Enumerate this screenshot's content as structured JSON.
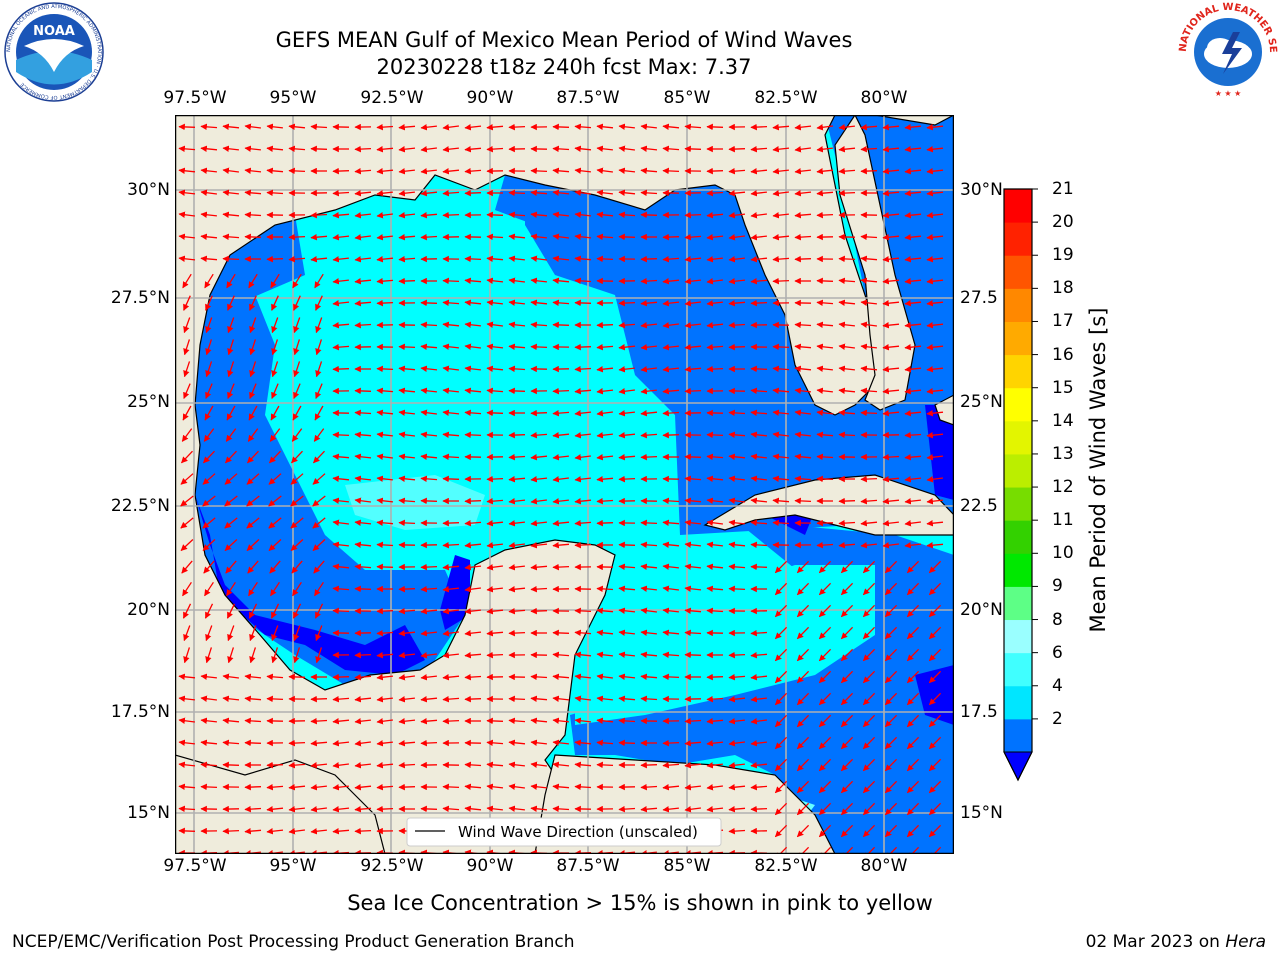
{
  "title": {
    "line1": "GEFS MEAN Gulf of Mexico Mean Period of Wind Waves",
    "line2": "20230228 t18z 240h fcst   Max: 7.37"
  },
  "map": {
    "lon_ticks": [
      "97.5°W",
      "95°W",
      "92.5°W",
      "90°W",
      "87.5°W",
      "85°W",
      "82.5°W",
      "80°W"
    ],
    "lat_ticks_left": [
      "30°N",
      "27.5°N",
      "25°N",
      "22.5°N",
      "20°N",
      "17.5°N",
      "15°N"
    ],
    "lat_ticks_right": [
      "30°N",
      "27.5",
      "25°N",
      "22.5",
      "20°N",
      "17.5",
      "15°N"
    ],
    "legend_label": "Wind Wave Direction (unscaled)",
    "colors": {
      "land": "#efecdc",
      "ocean_low": "#0073ff",
      "ocean_mid": "#00ffff",
      "ocean_light": "#66ffff",
      "deep_blue": "#0000ff",
      "arrow": "#ff0000"
    }
  },
  "colorbar": {
    "label": "Mean Period of Wind Waves [s]",
    "ticks": [
      "21",
      "20",
      "19",
      "18",
      "17",
      "16",
      "15",
      "14",
      "13",
      "12",
      "11",
      "10",
      "9",
      "8",
      "6",
      "4",
      "2"
    ],
    "levels": [
      2,
      4,
      6,
      8,
      9,
      10,
      11,
      12,
      13,
      14,
      15,
      16,
      17,
      18,
      19,
      20,
      21
    ],
    "colors": [
      "#0073ff",
      "#00e6ff",
      "#40ffff",
      "#9affff",
      "#5dff86",
      "#00e800",
      "#33d100",
      "#77dd00",
      "#bbee00",
      "#e3f500",
      "#ffff00",
      "#ffd400",
      "#ffaa00",
      "#ff8800",
      "#ff5500",
      "#ff2200",
      "#ff0000"
    ],
    "under_color": "#0000ff"
  },
  "note": "Sea Ice Concentration > 15% is shown in pink to yellow",
  "footer": {
    "left": "NCEP/EMC/Verification Post Processing Product Generation Branch",
    "right_date": "02 Mar 2023 on ",
    "right_host": "Hera"
  },
  "logos": {
    "noaa_text": "NOAA",
    "noaa_ring": "NATIONAL OCEANIC AND ATMOSPHERIC ADMINISTRATION · U.S. DEPARTMENT OF COMMERCE",
    "nws_ring": "NATIONAL WEATHER SERVICE"
  }
}
